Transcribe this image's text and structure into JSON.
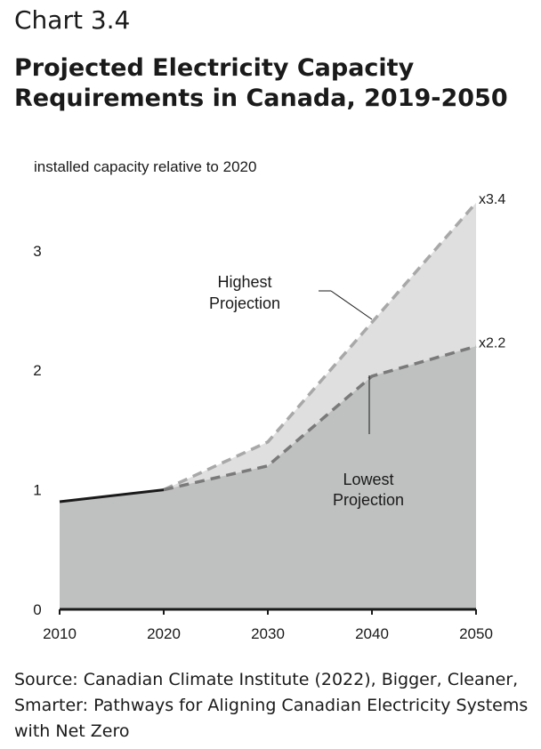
{
  "header": {
    "chart_number": "Chart 3.4",
    "title_line1": "Projected Electricity Capacity",
    "title_line2": "Requirements in Canada, 2019-2050"
  },
  "source": {
    "line1": "Source: Canadian Climate Institute (2022), Bigger, Cleaner,",
    "line2": "Smarter: Pathways for Aligning Canadian Electricity Systems",
    "line3": "with Net Zero"
  },
  "chart_data": {
    "type": "area",
    "title": "Projected Electricity Capacity Requirements in Canada, 2019-2050",
    "ylabel": "installed capacity relative to 2020",
    "xlabel": "",
    "x_ticks": [
      2010,
      2020,
      2030,
      2040,
      2050
    ],
    "y_ticks": [
      0,
      1,
      2,
      3
    ],
    "xlim": [
      2010,
      2050
    ],
    "ylim": [
      0,
      3.4
    ],
    "grid": false,
    "historical": {
      "x": [
        2010,
        2020
      ],
      "values": [
        0.9,
        1.0
      ]
    },
    "series": [
      {
        "name": "Highest Projection",
        "x": [
          2020,
          2030,
          2040,
          2050
        ],
        "values": [
          1.0,
          1.4,
          2.4,
          3.4
        ],
        "color": "#dedfde",
        "line_color": "#a8a8a8",
        "end_label": "x3.4"
      },
      {
        "name": "Lowest Projection",
        "x": [
          2020,
          2030,
          2040,
          2050
        ],
        "values": [
          1.0,
          1.2,
          1.95,
          2.2
        ],
        "color": "#bfc1c0",
        "line_color": "#7a7a7a",
        "end_label": "x2.2"
      }
    ],
    "annotations": {
      "highest_line1": "Highest",
      "highest_line2": "Projection",
      "lowest_line1": "Lowest",
      "lowest_line2": "Projection"
    }
  }
}
